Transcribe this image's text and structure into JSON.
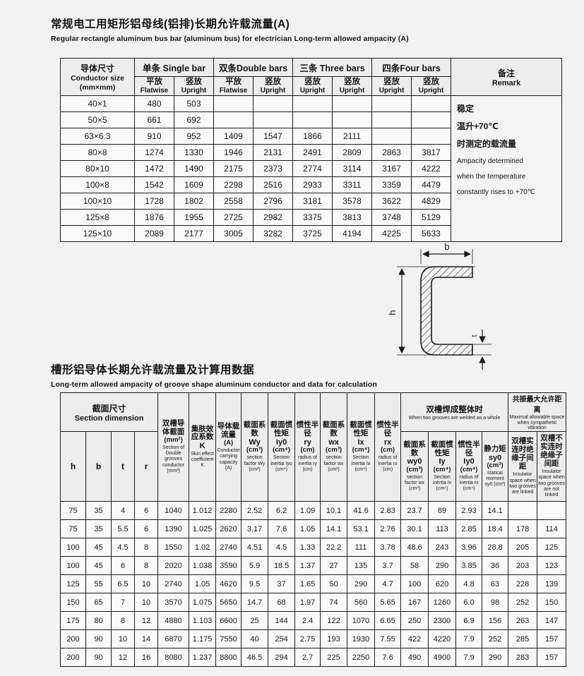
{
  "titles": {
    "t1_zh": "常规电工用矩形铝母线(铝排)长期允许载流量(A)",
    "t1_en": "Regular rectangle aluminum bus bar (aluminum bus) for electrician  Long-term allowed ampacity (A)",
    "t2_zh": "槽形铝导体长期允许载流量及计算用数据",
    "t2_en": "Long-term allowed ampacity of groove shape aluminum conductor and data for calculation"
  },
  "table1": {
    "size_header": {
      "zh": "导体尺寸",
      "en": "Conductor size",
      "unit": "(mm×mm)"
    },
    "groups": [
      "单条 Single bar",
      "双条Double bars",
      "三条 Three bars",
      "四条Four bars"
    ],
    "sub_cols": [
      {
        "zh": "平放",
        "en": "Flatwise"
      },
      {
        "zh": "竖放",
        "en": "Upright"
      },
      {
        "zh": "平放",
        "en": "Flatwise"
      },
      {
        "zh": "竖放",
        "en": "Upright"
      },
      {
        "zh": "竖放",
        "en": "Upright"
      },
      {
        "zh": "竖放",
        "en": "Upright"
      },
      {
        "zh": "竖放",
        "en": "Upright"
      },
      {
        "zh": "竖放",
        "en": "Upright"
      }
    ],
    "remark_header": {
      "zh": "备注",
      "en": "Remark"
    },
    "rows": [
      {
        "size": "40×1",
        "values": [
          "480",
          "503",
          "",
          "",
          "",
          "",
          "",
          ""
        ]
      },
      {
        "size": "50×5",
        "values": [
          "661",
          "692",
          "",
          "",
          "",
          "",
          "",
          ""
        ]
      },
      {
        "size": "63×6.3",
        "values": [
          "910",
          "952",
          "1409",
          "1547",
          "1866",
          "2111",
          "",
          ""
        ]
      },
      {
        "size": "80×8",
        "values": [
          "1274",
          "1330",
          "1946",
          "2131",
          "2491",
          "2809",
          "2863",
          "3817"
        ]
      },
      {
        "size": "80×10",
        "values": [
          "1472",
          "1490",
          "2175",
          "2373",
          "2774",
          "3114",
          "3167",
          "4222"
        ]
      },
      {
        "size": "100×8",
        "values": [
          "1542",
          "1609",
          "2298",
          "2516",
          "2933",
          "3311",
          "3359",
          "4479"
        ]
      },
      {
        "size": "100×10",
        "values": [
          "1728",
          "1802",
          "2558",
          "2796",
          "3181",
          "3578",
          "3622",
          "4829"
        ]
      },
      {
        "size": "125×8",
        "values": [
          "1876",
          "1955",
          "2725",
          "2982",
          "3375",
          "3813",
          "3748",
          "5129"
        ]
      },
      {
        "size": "125×10",
        "values": [
          "2089",
          "2177",
          "3005",
          "3282",
          "3725",
          "4194",
          "4225",
          "5633"
        ]
      }
    ],
    "remark": {
      "zh_lines": [
        "稳定",
        "温升+70℃",
        "时测定的载流量"
      ],
      "en_lines": [
        "Ampacity determined",
        "when the temperature",
        "constantly rises to +70℃"
      ]
    }
  },
  "diagram": {
    "labels": {
      "width": "b",
      "height": "h",
      "thickness": "t"
    }
  },
  "table2": {
    "dim_group": {
      "zh": "截面尺寸",
      "en": "Section dimension"
    },
    "dim_cols": [
      "h",
      "b",
      "t",
      "r"
    ],
    "span_cols": [
      {
        "zh": "双槽导体截面",
        "unit": "(mm²)",
        "en": "Section of Double grooves conductor (mm²)"
      },
      {
        "zh": "集肤效应系数",
        "sym": "K",
        "en": "Skin effect coefficient K"
      },
      {
        "zh": "导体载流量",
        "unit": "(A)",
        "en": "Conductor carrying capacity (A)"
      },
      {
        "zh": "截面系数",
        "sym": "Wy",
        "unit": "(cm³)",
        "en": "section factor Wy (cm³)"
      },
      {
        "zh": "截面惯性矩",
        "sym": "Iy0",
        "unit": "(cm⁴)",
        "en": "Section inertia Iyo (cm⁴)"
      },
      {
        "zh": "惯性半径",
        "sym": "ry",
        "unit": "(cm)",
        "en": "radius of inertia ry (cm)"
      },
      {
        "zh": "截面系数",
        "sym": "wx",
        "unit": "(cm³)",
        "en": "section factor wx (cm³)"
      },
      {
        "zh": "截面惯性矩",
        "sym": "Ix",
        "unit": "(cm⁴)",
        "en": "Section inertia Ix (cm⁴)"
      },
      {
        "zh": "惯性半径",
        "sym": "rx",
        "unit": "(cm)",
        "en": "radius of inertia rx (cm)"
      }
    ],
    "welded_group": {
      "zh": "双槽焊成整体时",
      "en": "When two grooves are welded as a whole"
    },
    "welded_cols": [
      {
        "zh": "截面系数",
        "sym": "wy0",
        "unit": "(cm³)",
        "en": "section factor wx (cm³)"
      },
      {
        "zh": "截面惯性矩",
        "sym": "Iy",
        "unit": "(cm⁴)",
        "en": "Section inertia Ix (cm⁴)"
      },
      {
        "zh": "惯性半径",
        "sym": "Iy0",
        "unit": "(cm⁴)",
        "en": "radius of inertia rx (cm⁴)"
      },
      {
        "zh": "静力矩",
        "sym": "sy0",
        "unit": "(cm³)",
        "en": "statical moment sy0 (cm³)"
      }
    ],
    "resonance_group": {
      "zh": "共振最大允许距离",
      "en": "Maximal allowable space when sympathetic vibration"
    },
    "resonance_cols": [
      {
        "zh": "双槽实连时绝缘子间距",
        "en": "Insulator space when two grooves are linked"
      },
      {
        "zh": "双槽不实连时绝缘子间距",
        "en": "Insulator space when two grooves are not linked"
      }
    ],
    "rows": [
      [
        "75",
        "35",
        "4",
        "6",
        "1040",
        "1.012",
        "2280",
        "2.52",
        "6.2",
        "1.09",
        "10.1",
        "41.6",
        "2.83",
        "23.7",
        "89",
        "2.93",
        "14.1",
        "",
        ""
      ],
      [
        "75",
        "35",
        "5.5",
        "6",
        "1390",
        "1.025",
        "2620",
        "3.17",
        "7.6",
        "1.05",
        "14.1",
        "53.1",
        "2.76",
        "30.1",
        "113",
        "2.85",
        "18.4",
        "178",
        "114"
      ],
      [
        "100",
        "45",
        "4.5",
        "8",
        "1550",
        "1.02",
        "2740",
        "4.51",
        "4.5",
        "1.33",
        "22.2",
        "111",
        "3.78",
        "48.6",
        "243",
        "3.96",
        "28.8",
        "205",
        "125"
      ],
      [
        "100",
        "45",
        "6",
        "8",
        "2020",
        "1.038",
        "3590",
        "5.9",
        "18.5",
        "1.37",
        "27",
        "135",
        "3.7",
        "58",
        "290",
        "3.85",
        "36",
        "203",
        "123"
      ],
      [
        "125",
        "55",
        "6.5",
        "10",
        "2740",
        "1.05",
        "4620",
        "9.5",
        "37",
        "1.65",
        "50",
        "290",
        "4.7",
        "100",
        "620",
        "4.8",
        "63",
        "228",
        "139"
      ],
      [
        "150",
        "65",
        "7",
        "10",
        "3570",
        "1.075",
        "5650",
        "14.7",
        "68",
        "1.97",
        "74",
        "560",
        "5.65",
        "167",
        "1260",
        "6.0",
        "98",
        "252",
        "150"
      ],
      [
        "175",
        "80",
        "8",
        "12",
        "4880",
        "1.103",
        "6600",
        "25",
        "144",
        "2.4",
        "122",
        "1070",
        "6.65",
        "250",
        "2300",
        "6.9",
        "156",
        "263",
        "147"
      ],
      [
        "200",
        "90",
        "10",
        "14",
        "6870",
        "1.175",
        "7550",
        "40",
        "254",
        "2.75",
        "193",
        "1930",
        "7.55",
        "422",
        "4220",
        "7.9",
        "252",
        "285",
        "157"
      ],
      [
        "200",
        "90",
        "12",
        "16",
        "8080",
        "1.237",
        "8800",
        "46.5",
        "294",
        "2.7",
        "225",
        "2250",
        "7.6",
        "490",
        "4900",
        "7.9",
        "290",
        "283",
        "157"
      ]
    ]
  }
}
